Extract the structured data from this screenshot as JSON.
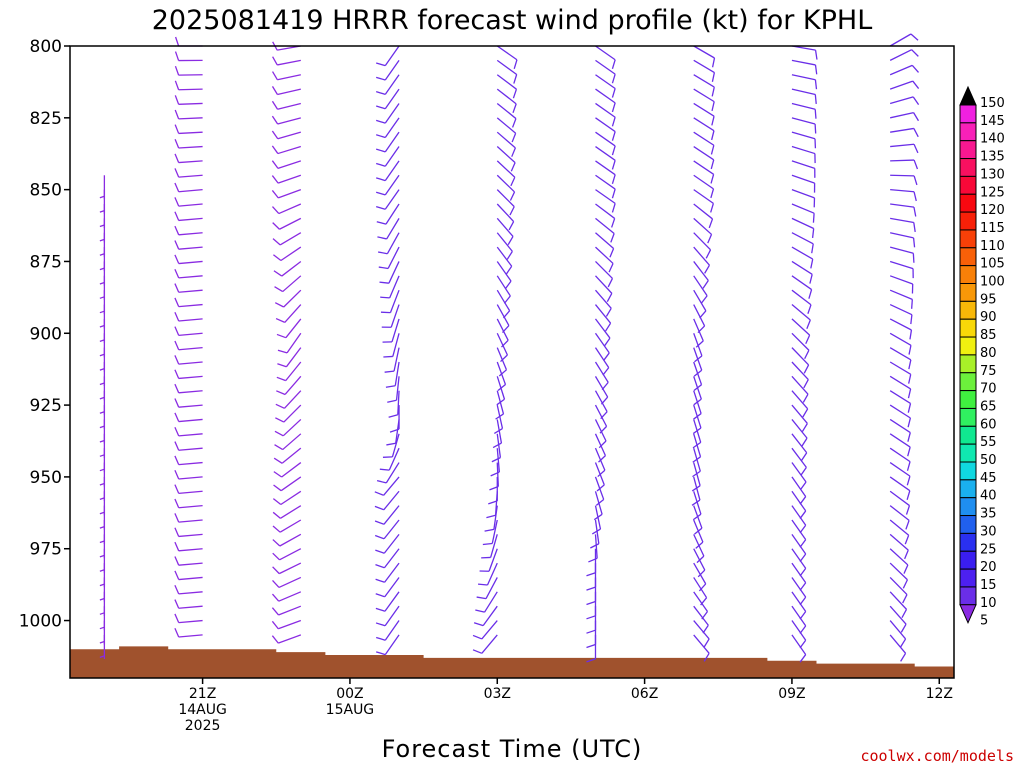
{
  "chart_data": {
    "type": "wind-barb-profile",
    "title": "2025081419 HRRR forecast wind profile (kt) for KPHL",
    "xlabel": "Forecast Time (UTC)",
    "ylabel": "",
    "credit": "coolwx.com/models",
    "y_axis": {
      "unit": "hPa",
      "reversed": true,
      "range": [
        800,
        1020
      ],
      "ticks": [
        800,
        825,
        850,
        875,
        900,
        925,
        950,
        975,
        1000
      ]
    },
    "x_axis": {
      "range_hours": [
        -2.7,
        15.3
      ],
      "ticks": [
        {
          "hour": 0,
          "line1": "21Z",
          "line2": "14AUG",
          "line3": "2025"
        },
        {
          "hour": 3,
          "line1": "00Z",
          "line2": "15AUG",
          "line3": ""
        },
        {
          "hour": 6,
          "line1": "03Z",
          "line2": "",
          "line3": ""
        },
        {
          "hour": 9,
          "line1": "06Z",
          "line2": "",
          "line3": ""
        },
        {
          "hour": 12,
          "line1": "09Z",
          "line2": "",
          "line3": ""
        },
        {
          "hour": 15,
          "line1": "12Z",
          "line2": "",
          "line3": ""
        }
      ]
    },
    "colorbar": {
      "unit": "kt",
      "levels": [
        5,
        10,
        15,
        20,
        25,
        30,
        35,
        40,
        45,
        50,
        55,
        60,
        65,
        70,
        75,
        80,
        85,
        90,
        95,
        100,
        105,
        110,
        115,
        120,
        125,
        130,
        135,
        140,
        145,
        150
      ],
      "colors": [
        "#8a2be2",
        "#6a2ee8",
        "#4d20f0",
        "#3a1ef0",
        "#2a30f0",
        "#2060ee",
        "#1f8ef0",
        "#1ab0ee",
        "#10d8e0",
        "#10e8b0",
        "#10e890",
        "#30f060",
        "#40f040",
        "#6cf03c",
        "#a8f028",
        "#f0f010",
        "#f8d808",
        "#f8b808",
        "#f89808",
        "#f88008",
        "#f86008",
        "#f84008",
        "#f82008",
        "#f80810",
        "#f80838",
        "#f81060",
        "#f81890",
        "#f820b8",
        "#f020e0",
        "#000000"
      ]
    },
    "terrain": {
      "color": "#a0522d",
      "surface_pressure": [
        {
          "hour": -2.7,
          "p": 1010
        },
        {
          "hour": -2.2,
          "p": 1010
        },
        {
          "hour": -1.7,
          "p": 1009
        },
        {
          "hour": -0.7,
          "p": 1010
        },
        {
          "hour": 1.5,
          "p": 1011
        },
        {
          "hour": 2.5,
          "p": 1012
        },
        {
          "hour": 4.5,
          "p": 1013
        },
        {
          "hour": 11.5,
          "p": 1014
        },
        {
          "hour": 12.5,
          "p": 1015
        },
        {
          "hour": 14.5,
          "p": 1016
        },
        {
          "hour": 15.3,
          "p": 1016
        }
      ]
    },
    "profiles": [
      {
        "hour": -2.0,
        "speed_kt": 5,
        "dir_deg_by_level": [
          {
            "p": 845,
            "dir": 180
          },
          {
            "p": 900,
            "dir": 180
          },
          {
            "p": 950,
            "dir": 180
          },
          {
            "p": 1000,
            "dir": 180
          }
        ]
      },
      {
        "hour": 0.0,
        "speed_kt": 8,
        "dir_deg_by_level": [
          {
            "p": 800,
            "dir": 270
          },
          {
            "p": 850,
            "dir": 265
          },
          {
            "p": 900,
            "dir": 265
          },
          {
            "p": 950,
            "dir": 265
          },
          {
            "p": 1000,
            "dir": 265
          }
        ]
      },
      {
        "hour": 2.0,
        "speed_kt": 8,
        "dir_deg_by_level": [
          {
            "p": 800,
            "dir": 260
          },
          {
            "p": 850,
            "dir": 250
          },
          {
            "p": 900,
            "dir": 215
          },
          {
            "p": 950,
            "dir": 235
          },
          {
            "p": 1000,
            "dir": 250
          }
        ]
      },
      {
        "hour": 4.0,
        "speed_kt": 10,
        "dir_deg_by_level": [
          {
            "p": 800,
            "dir": 215
          },
          {
            "p": 850,
            "dir": 215
          },
          {
            "p": 900,
            "dir": 195
          },
          {
            "p": 925,
            "dir": 180
          },
          {
            "p": 950,
            "dir": 220
          },
          {
            "p": 1000,
            "dir": 215
          }
        ]
      },
      {
        "hour": 6.0,
        "speed_kt": 12,
        "dir_deg_by_level": [
          {
            "p": 800,
            "dir": 125
          },
          {
            "p": 850,
            "dir": 135
          },
          {
            "p": 900,
            "dir": 155
          },
          {
            "p": 950,
            "dir": 180
          },
          {
            "p": 1000,
            "dir": 220
          }
        ]
      },
      {
        "hour": 8.0,
        "speed_kt": 12,
        "dir_deg_by_level": [
          {
            "p": 800,
            "dir": 125
          },
          {
            "p": 850,
            "dir": 125
          },
          {
            "p": 900,
            "dir": 145
          },
          {
            "p": 950,
            "dir": 160
          },
          {
            "p": 975,
            "dir": 180
          },
          {
            "p": 1000,
            "dir": 180
          }
        ]
      },
      {
        "hour": 10.0,
        "speed_kt": 12,
        "dir_deg_by_level": [
          {
            "p": 800,
            "dir": 120
          },
          {
            "p": 850,
            "dir": 125
          },
          {
            "p": 900,
            "dir": 160
          },
          {
            "p": 950,
            "dir": 165
          },
          {
            "p": 1000,
            "dir": 140
          }
        ]
      },
      {
        "hour": 12.0,
        "speed_kt": 12,
        "dir_deg_by_level": [
          {
            "p": 800,
            "dir": 100
          },
          {
            "p": 850,
            "dir": 110
          },
          {
            "p": 900,
            "dir": 135
          },
          {
            "p": 950,
            "dir": 145
          },
          {
            "p": 1000,
            "dir": 145
          }
        ]
      },
      {
        "hour": 14.0,
        "speed_kt": 12,
        "dir_deg_by_level": [
          {
            "p": 800,
            "dir": 60
          },
          {
            "p": 850,
            "dir": 95
          },
          {
            "p": 900,
            "dir": 120
          },
          {
            "p": 950,
            "dir": 125
          },
          {
            "p": 1000,
            "dir": 140
          }
        ]
      }
    ],
    "grid": false
  }
}
